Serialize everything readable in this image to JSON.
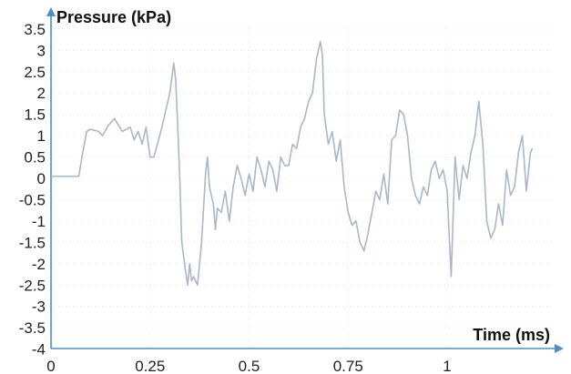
{
  "chart_data": {
    "type": "line",
    "xlabel": "Time (ms)",
    "ylabel": "Pressure (kPa)",
    "xlim": [
      0,
      1.25
    ],
    "ylim": [
      -4,
      3.6
    ],
    "xticks": [
      0,
      0.25,
      0.5,
      0.75,
      1
    ],
    "xtick_labels": [
      "0",
      "0.25",
      "0.5",
      "0.75",
      "1"
    ],
    "yticks": [
      3.5,
      3,
      2.5,
      2,
      1.5,
      1,
      0.5,
      0,
      -0.5,
      -1,
      -1.5,
      -2,
      -2.5,
      -3,
      -3.5,
      -4
    ],
    "ytick_labels": [
      "3.5",
      "3",
      "2.5",
      "2",
      "1.5",
      "1",
      "0.5",
      "0",
      "-0.5",
      "-1",
      "-1.5",
      "-2",
      "-2.5",
      "-3",
      "-3.5",
      "-4"
    ],
    "grid": true,
    "series": [
      {
        "color": "#a9b8c8",
        "x": [
          0,
          0.03,
          0.07,
          0.08,
          0.09,
          0.1,
          0.12,
          0.13,
          0.145,
          0.16,
          0.18,
          0.2,
          0.21,
          0.22,
          0.23,
          0.24,
          0.25,
          0.26,
          0.28,
          0.3,
          0.31,
          0.315,
          0.32,
          0.325,
          0.33,
          0.34,
          0.345,
          0.35,
          0.355,
          0.36,
          0.37,
          0.38,
          0.39,
          0.395,
          0.4,
          0.41,
          0.415,
          0.42,
          0.43,
          0.44,
          0.45,
          0.46,
          0.47,
          0.48,
          0.49,
          0.5,
          0.51,
          0.52,
          0.53,
          0.54,
          0.55,
          0.56,
          0.57,
          0.58,
          0.59,
          0.6,
          0.61,
          0.62,
          0.63,
          0.64,
          0.65,
          0.66,
          0.67,
          0.68,
          0.685,
          0.69,
          0.7,
          0.71,
          0.72,
          0.73,
          0.74,
          0.75,
          0.76,
          0.77,
          0.78,
          0.79,
          0.8,
          0.81,
          0.82,
          0.83,
          0.84,
          0.85,
          0.86,
          0.87,
          0.88,
          0.89,
          0.9,
          0.91,
          0.92,
          0.93,
          0.94,
          0.95,
          0.96,
          0.97,
          0.98,
          0.99,
          1.0,
          1.01,
          1.02,
          1.03,
          1.04,
          1.05,
          1.06,
          1.07,
          1.08,
          1.09,
          1.1,
          1.11,
          1.12,
          1.13,
          1.14,
          1.15,
          1.16,
          1.17,
          1.18,
          1.19,
          1.2,
          1.21,
          1.215
        ],
        "y": [
          0.05,
          0.05,
          0.05,
          0.6,
          1.1,
          1.15,
          1.1,
          1.0,
          1.25,
          1.4,
          1.1,
          1.2,
          0.9,
          1.1,
          0.8,
          1.2,
          0.5,
          0.5,
          1.2,
          2.0,
          2.7,
          2.3,
          1.2,
          0.0,
          -1.5,
          -2.2,
          -2.5,
          -2.0,
          -2.4,
          -2.3,
          -2.5,
          -1.5,
          0.1,
          0.5,
          -0.2,
          -0.6,
          -1.2,
          -0.7,
          -0.8,
          -0.3,
          -1.0,
          -0.2,
          0.3,
          0.0,
          -0.4,
          0.1,
          -0.3,
          0.5,
          0.2,
          -0.2,
          0.4,
          0.2,
          -0.3,
          0.5,
          0.3,
          0.3,
          0.8,
          0.7,
          1.2,
          1.4,
          1.8,
          2.0,
          2.8,
          3.2,
          2.9,
          1.5,
          0.8,
          1.1,
          0.4,
          0.9,
          -0.2,
          -0.8,
          -1.1,
          -1.0,
          -1.5,
          -1.7,
          -1.3,
          -0.8,
          -0.3,
          -0.5,
          0.1,
          -0.6,
          0.9,
          1.0,
          1.6,
          1.5,
          1.0,
          0.0,
          -0.4,
          -0.6,
          -0.2,
          -0.4,
          0.2,
          0.4,
          0.0,
          0.2,
          -0.3,
          -2.3,
          0.5,
          -0.5,
          0.3,
          0.0,
          0.6,
          1.0,
          1.8,
          0.8,
          -1.0,
          -1.4,
          -1.2,
          -0.6,
          -1.1,
          0.2,
          -0.4,
          -0.2,
          0.6,
          1.0,
          -0.3,
          0.6,
          0.7
        ]
      }
    ]
  }
}
